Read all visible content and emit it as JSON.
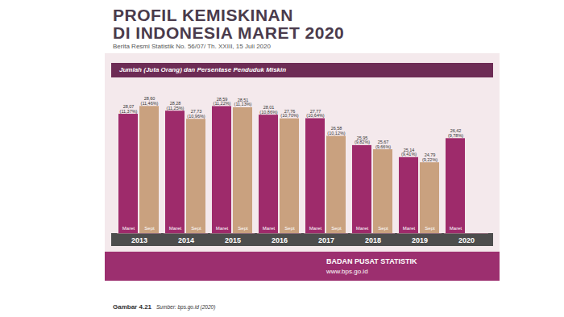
{
  "chart_data": {
    "type": "bar",
    "title": "PROFIL KEMISKINAN\nDI INDONESIA MARET 2020",
    "subtitle": "Berita Resmi Statistik No. 56/07/ Th. XXIII, 15 Juli 2020",
    "annotations": {
      "header": "Jumlah (Juta Orang) dan Persentase Penduduk Miskin",
      "source_org": "BADAN PUSAT STATISTIK",
      "source_url": "www.bps.go.id",
      "figure": "Gambar 4.21",
      "caption": "Sumber: bps.go.id (2020)"
    },
    "categories": [
      "2013",
      "2014",
      "2015",
      "2016",
      "2017",
      "2018",
      "2019",
      "2020"
    ],
    "series": [
      {
        "name": "Maret",
        "color": "#9e2b6b",
        "values": [
          28.07,
          28.28,
          28.59,
          28.01,
          27.77,
          25.95,
          25.14,
          26.42
        ],
        "value_labels": [
          "28,07",
          "28,28",
          "28,59",
          "28,01",
          "27,77",
          "25,95",
          "25,14",
          "26,42"
        ],
        "percentages": [
          11.37,
          11.25,
          11.22,
          10.86,
          10.64,
          9.82,
          9.41,
          9.78
        ],
        "percentage_labels": [
          "(11,37%)",
          "(11,25%)",
          "(11,22%)",
          "(10,86%)",
          "(10,64%)",
          "(9,82%)",
          "(9,41%)",
          "(9,78%)"
        ]
      },
      {
        "name": "Sept",
        "color": "#c9a17f",
        "values": [
          28.6,
          27.73,
          28.51,
          27.76,
          26.58,
          25.67,
          24.79,
          null
        ],
        "value_labels": [
          "28,60",
          "27,73",
          "28,51",
          "27,76",
          "26,58",
          "25,67",
          "24,79",
          null
        ],
        "percentages": [
          11.46,
          10.96,
          11.13,
          10.7,
          10.12,
          9.66,
          9.22,
          null
        ],
        "percentage_labels": [
          "(11,46%)",
          "(10,96%)",
          "(11,13%)",
          "(10,70%)",
          "(10,12%)",
          "(9,66%)",
          "(9,22%)",
          null
        ]
      }
    ],
    "ylim": [
      20,
      29
    ],
    "data_labels": true,
    "tick_labels": "x"
  }
}
